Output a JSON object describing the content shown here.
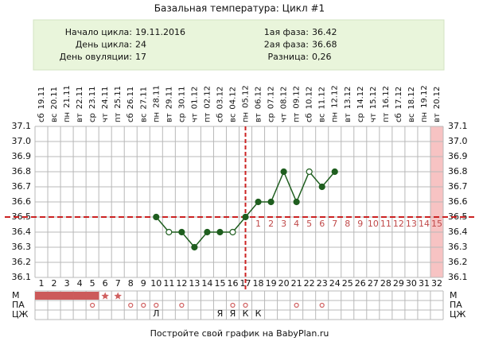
{
  "chart_data": {
    "type": "line",
    "title": "Базальная температура: Цикл #1",
    "summary_left": [
      {
        "label": "Начало цикла:",
        "value": "19.11.2016"
      },
      {
        "label": "День цикла:",
        "value": 24
      },
      {
        "label": "День овуляции:",
        "value": 17
      }
    ],
    "summary_right": [
      {
        "label": "1ая фаза:",
        "value": 36.42
      },
      {
        "label": "2ая фаза:",
        "value": 36.68
      },
      {
        "label": "Разница:",
        "value": "0,26"
      }
    ],
    "weekdays": [
      "сб",
      "вс",
      "пн",
      "вт",
      "ср",
      "чт",
      "пт",
      "сб",
      "вс",
      "пн",
      "вт",
      "ср",
      "чт",
      "пт",
      "сб",
      "вс",
      "пн",
      "вт",
      "ср",
      "чт",
      "пт",
      "сб",
      "вс",
      "пн",
      "вт",
      "ср",
      "чт",
      "пт",
      "сб",
      "вс",
      "пн",
      "вт"
    ],
    "dates": [
      "19.11",
      "20.11",
      "21.11",
      "22.11",
      "23.11",
      "24.11",
      "25.11",
      "26.11",
      "27.11",
      "28.11",
      "29.11",
      "30.11",
      "01.12",
      "02.12",
      "03.12",
      "04.12",
      "05.12",
      "06.12",
      "07.12",
      "08.12",
      "09.12",
      "10.12",
      "11.12",
      "12.12",
      "13.12",
      "14.12",
      "15.12",
      "16.12",
      "17.12",
      "18.12",
      "19.12",
      "20.12"
    ],
    "xlim": [
      0.5,
      32.5
    ],
    "xticks": [
      1,
      2,
      3,
      4,
      5,
      6,
      7,
      8,
      9,
      10,
      11,
      12,
      13,
      14,
      15,
      16,
      17,
      18,
      19,
      20,
      21,
      22,
      23,
      24,
      25,
      26,
      27,
      28,
      29,
      30,
      31,
      32
    ],
    "ylim": [
      36.1,
      37.1
    ],
    "yticks": [
      36.1,
      36.2,
      36.3,
      36.4,
      36.5,
      36.6,
      36.7,
      36.8,
      36.9,
      {
        "value": 37,
        "label": "37.0"
      },
      37.1
    ],
    "x": [
      10,
      11,
      12,
      13,
      14,
      15,
      16,
      17,
      18,
      19,
      20,
      21,
      22,
      23,
      24
    ],
    "values": [
      36.5,
      36.4,
      36.4,
      36.3,
      36.4,
      36.4,
      36.4,
      36.5,
      36.6,
      36.6,
      36.8,
      36.6,
      36.8,
      36.7,
      36.8
    ],
    "hollow_days": [
      11,
      16,
      22
    ],
    "color": "#1f5e1f",
    "coverline": 36.5,
    "line_color": "#cc2222",
    "luteal_labels": [
      1,
      2,
      3,
      4,
      5,
      6,
      7,
      8,
      9,
      10,
      11,
      12,
      13,
      14,
      15
    ],
    "highlight_day": 32,
    "row_labels": [
      "М",
      "ПА",
      "ЦЖ"
    ],
    "menstruation_days": [
      1,
      2,
      3,
      4,
      5
    ],
    "star_days": [
      6,
      7
    ],
    "pa_days": [
      5,
      8,
      9,
      10,
      12,
      16,
      17,
      21,
      23
    ],
    "mucus": [
      {
        "day": 10,
        "label": "Л"
      },
      {
        "day": 15,
        "label": "Я"
      },
      {
        "day": 16,
        "label": "Я"
      },
      {
        "day": 17,
        "label": "К"
      },
      {
        "day": 18,
        "label": "К"
      }
    ],
    "footer": "Постройте свой график на BabyPlan.ru"
  }
}
